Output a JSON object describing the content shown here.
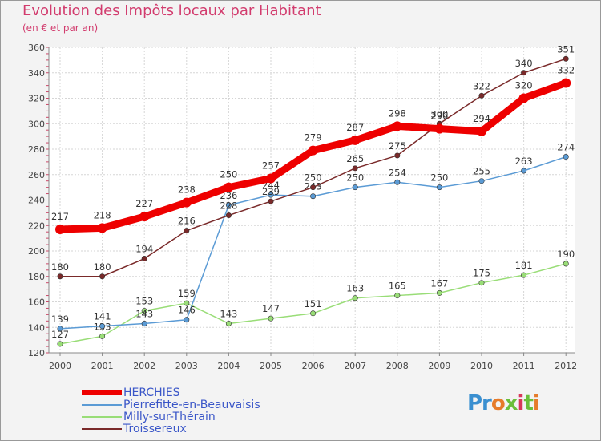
{
  "title": "Evolution des Impôts locaux par Habitant",
  "subtitle": "(en € et par an)",
  "logo_text": "Proxiti",
  "chart_data": {
    "type": "line",
    "title": "Evolution des Impôts locaux par Habitant",
    "subtitle": "(en € et par an)",
    "x": [
      "2000",
      "2001",
      "2002",
      "2003",
      "2004",
      "2005",
      "2006",
      "2007",
      "2008",
      "2009",
      "2010",
      "2011",
      "2012"
    ],
    "ylim": [
      120,
      360
    ],
    "yticks": [
      120,
      140,
      160,
      180,
      200,
      220,
      240,
      260,
      280,
      300,
      320,
      340,
      360
    ],
    "grid": true,
    "legend": "bottom-left",
    "series": [
      {
        "name": "HERCHIES",
        "color": "#ee0000",
        "values": [
          217,
          218,
          227,
          238,
          250,
          257,
          279,
          287,
          298,
          296,
          294,
          320,
          332
        ]
      },
      {
        "name": "Pierrefitte-en-Beauvaisis",
        "color": "#5b9bd5",
        "values": [
          139,
          141,
          143,
          146,
          236,
          244,
          243,
          250,
          254,
          250,
          255,
          263,
          274
        ]
      },
      {
        "name": "Milly-sur-Thérain",
        "color": "#99dd77",
        "values": [
          127,
          133,
          153,
          159,
          143,
          147,
          151,
          163,
          165,
          167,
          175,
          181,
          190
        ]
      },
      {
        "name": "Troissereux",
        "color": "#7a2a2a",
        "values": [
          180,
          180,
          194,
          216,
          228,
          239,
          250,
          265,
          275,
          300,
          322,
          340,
          351
        ]
      }
    ]
  }
}
